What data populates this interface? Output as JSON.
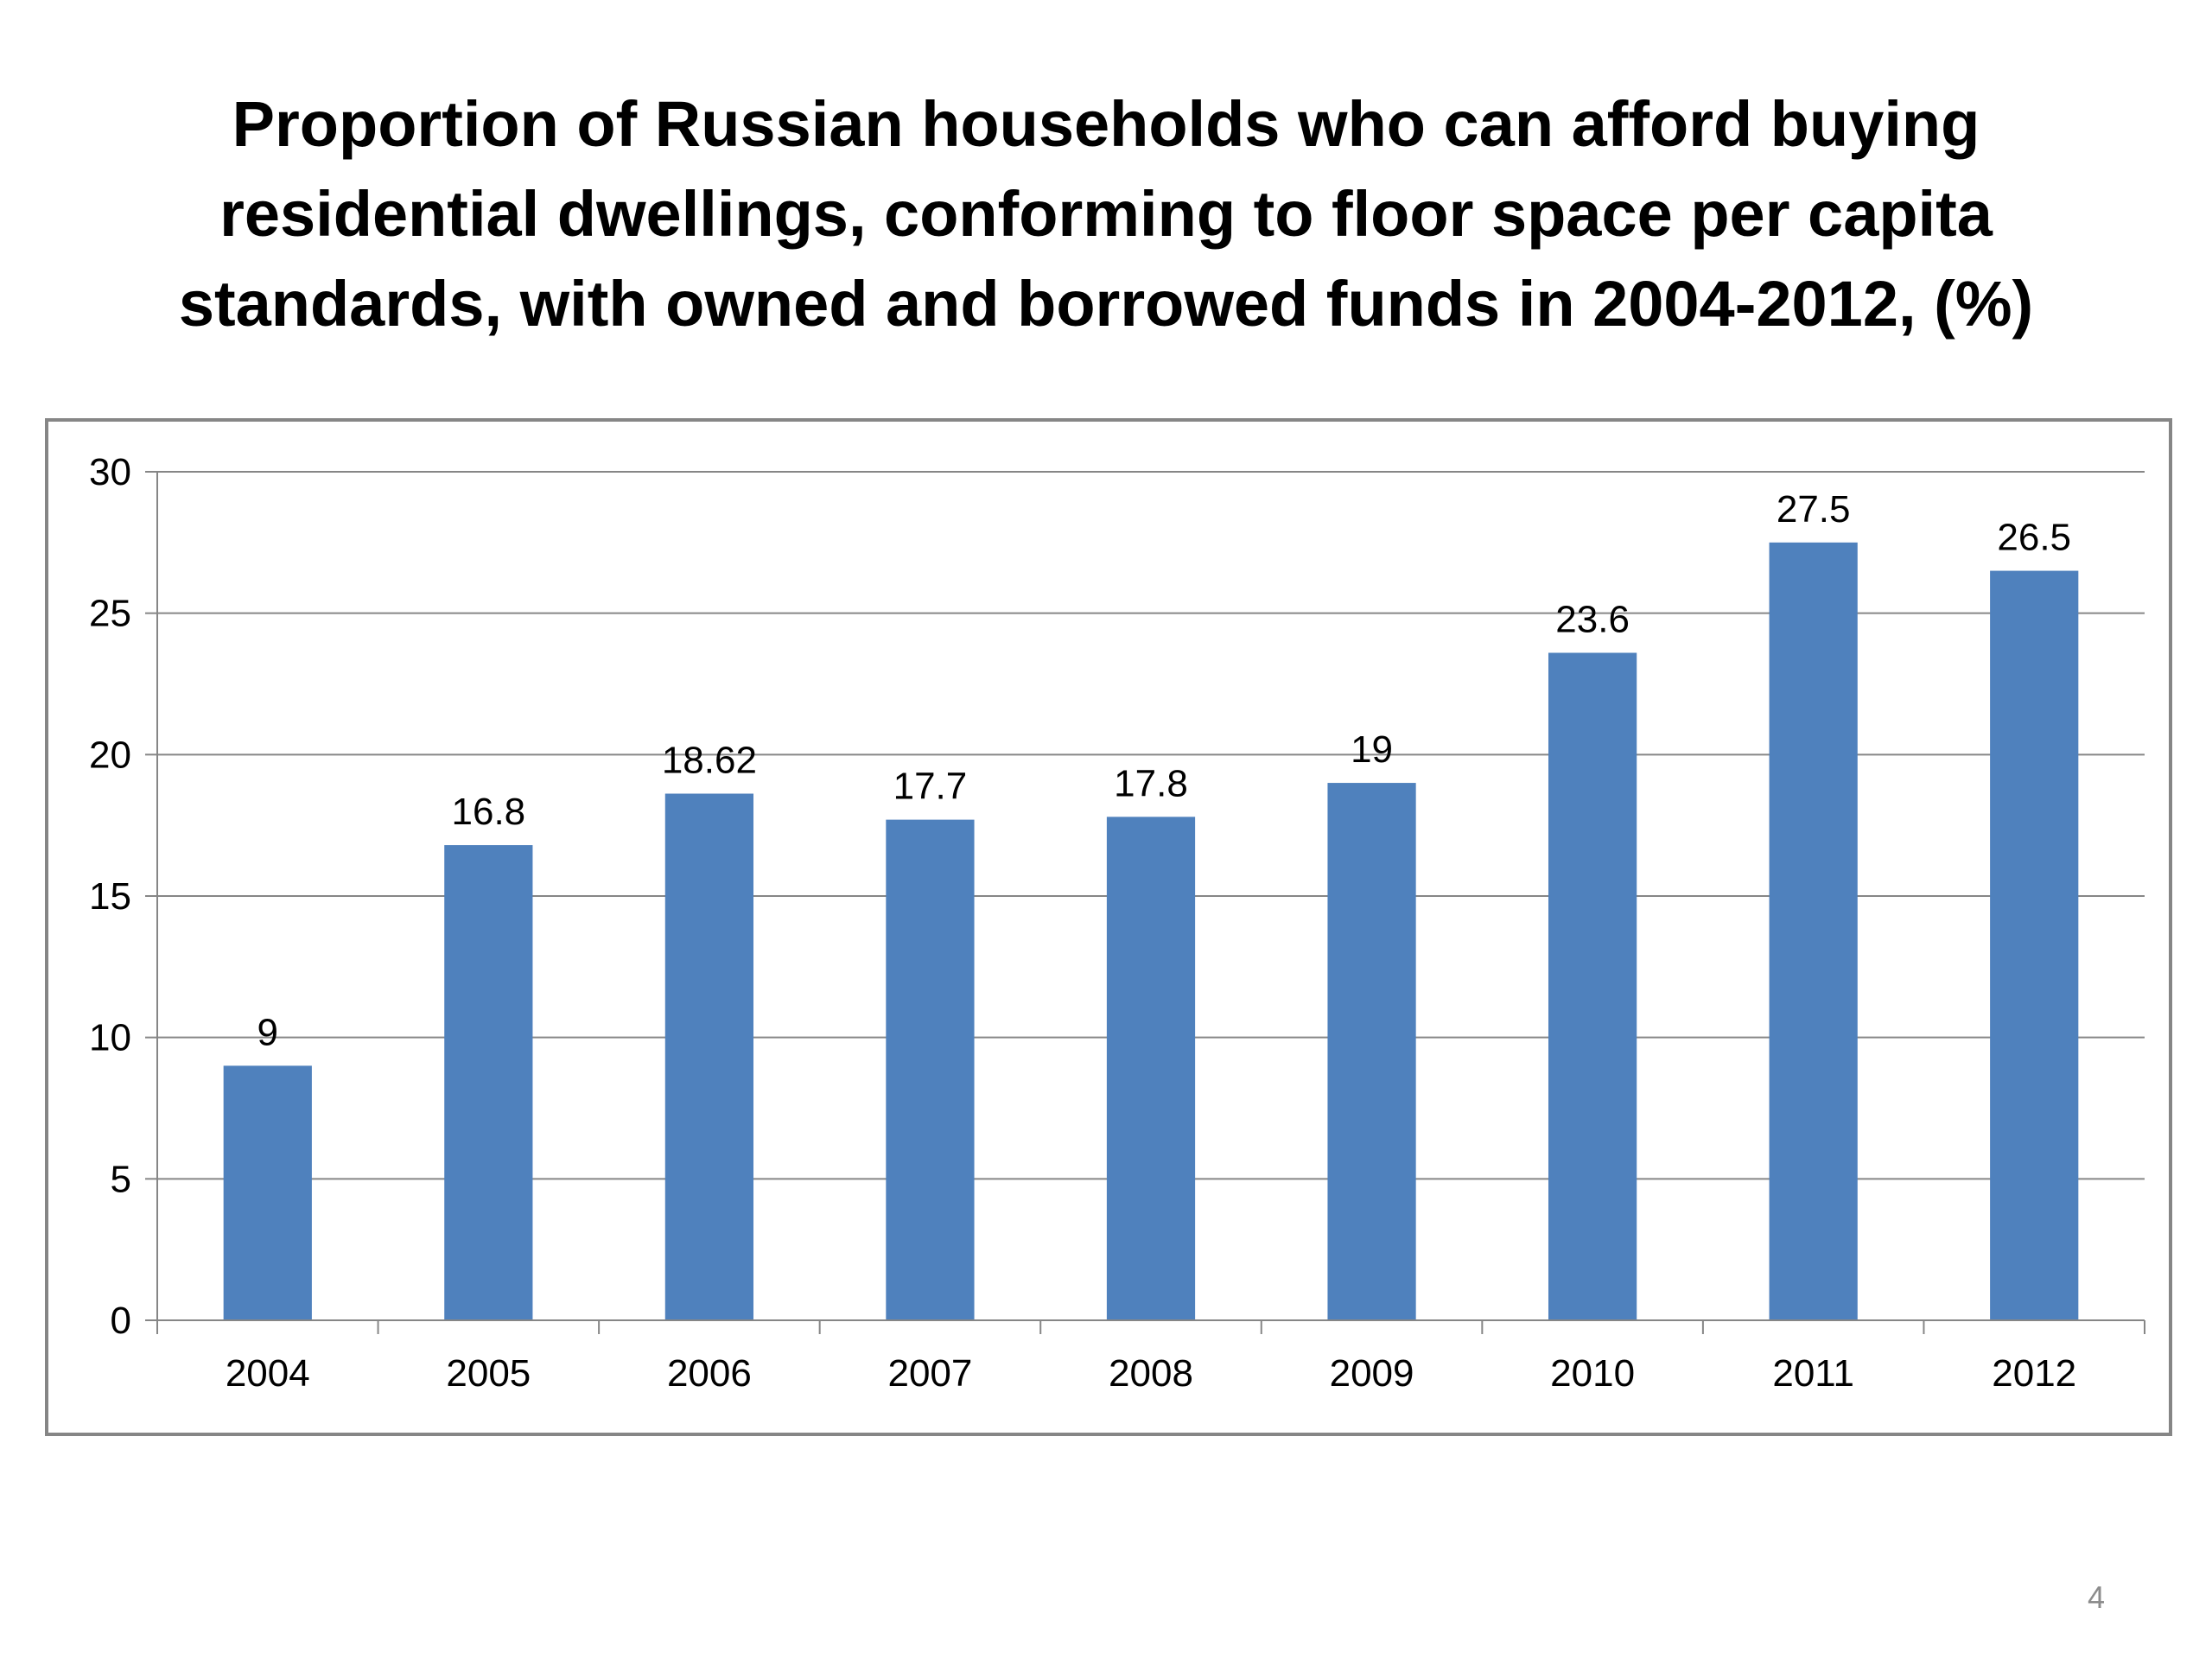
{
  "slide": {
    "page_number": "4"
  },
  "colors": {
    "bar": "#4F81BD",
    "gridline": "#868686",
    "frame": "#868686"
  },
  "chart_data": {
    "type": "bar",
    "title": "Proportion of Russian households who can afford buying residential dwellings, conforming to floor space per capita standards, with owned and borrowed funds in 2004-2012, (%)",
    "xlabel": "",
    "ylabel": "",
    "categories": [
      "2004",
      "2005",
      "2006",
      "2007",
      "2008",
      "2009",
      "2010",
      "2011",
      "2012"
    ],
    "values": [
      9,
      16.8,
      18.62,
      17.7,
      17.8,
      19,
      23.6,
      27.5,
      26.5
    ],
    "data_labels": [
      "9",
      "16.8",
      "18.62",
      "17.7",
      "17.8",
      "19",
      "23.6",
      "27.5",
      "26.5"
    ],
    "ylim": [
      0,
      30
    ],
    "yticks": [
      "0",
      "5",
      "10",
      "15",
      "20",
      "25",
      "30"
    ],
    "grid": true,
    "legend": "none"
  }
}
